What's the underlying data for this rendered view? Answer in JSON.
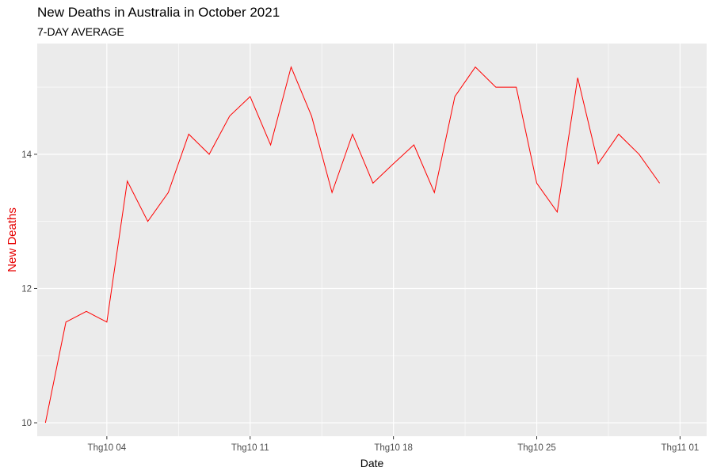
{
  "chart_data": {
    "type": "line",
    "title": "New Deaths in Australia in October 2021",
    "subtitle": "7-DAY AVERAGE",
    "xlabel": "Date",
    "ylabel": "New Deaths",
    "x_ticks": [
      {
        "label": "Thg10 04",
        "day": 4
      },
      {
        "label": "Thg10 11",
        "day": 11
      },
      {
        "label": "Thg10 18",
        "day": 18
      },
      {
        "label": "Thg10 25",
        "day": 25
      },
      {
        "label": "Thg11 01",
        "day": 32
      }
    ],
    "y_ticks": [
      10,
      12,
      14
    ],
    "xlim": [
      0.6,
      33.3
    ],
    "ylim": [
      9.8,
      15.65
    ],
    "grid": true,
    "colors": {
      "line": "#ff0000",
      "ylabel": "#e60000",
      "panel": "#ebebeb",
      "grid": "#ffffff"
    },
    "series": [
      {
        "x": [
          1,
          2,
          3,
          4,
          5,
          6,
          7,
          8,
          9,
          10,
          11,
          12,
          13,
          14,
          15,
          16,
          17,
          18,
          19,
          20,
          21,
          22,
          23,
          24,
          25,
          26,
          27,
          28,
          29,
          30,
          31
        ],
        "y": [
          10.0,
          11.5,
          11.66,
          11.5,
          13.6,
          13.0,
          13.43,
          14.3,
          14.0,
          14.57,
          14.86,
          14.14,
          15.3,
          14.57,
          13.43,
          14.3,
          13.57,
          13.86,
          14.14,
          13.43,
          14.86,
          15.3,
          15.0,
          15.0,
          13.57,
          13.14,
          15.14,
          13.86,
          14.3,
          14.0,
          13.57
        ]
      }
    ]
  }
}
